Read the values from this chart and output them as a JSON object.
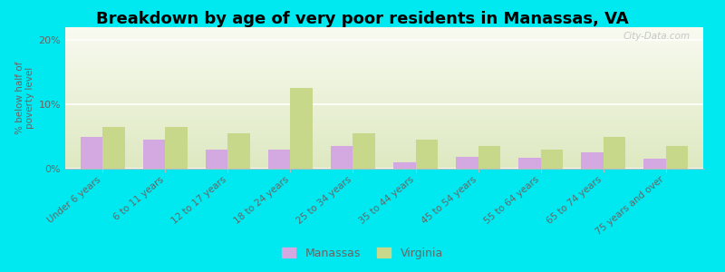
{
  "title": "Breakdown by age of very poor residents in Manassas, VA",
  "ylabel": "% below half of\npoverty level",
  "categories": [
    "Under 6 years",
    "6 to 11 years",
    "12 to 17 years",
    "18 to 24 years",
    "25 to 34 years",
    "35 to 44 years",
    "45 to 54 years",
    "55 to 64 years",
    "65 to 74 years",
    "75 years and over"
  ],
  "manassas_values": [
    5.0,
    4.5,
    3.0,
    3.0,
    3.5,
    1.0,
    1.8,
    1.7,
    2.5,
    1.5
  ],
  "virginia_values": [
    6.5,
    6.5,
    5.5,
    12.5,
    5.5,
    4.5,
    3.5,
    3.0,
    5.0,
    3.5
  ],
  "manassas_color": "#d4a8e0",
  "virginia_color": "#c8d88a",
  "ylim": [
    0,
    22
  ],
  "yticks": [
    0,
    10,
    20
  ],
  "ytick_labels": [
    "0%",
    "10%",
    "20%"
  ],
  "plot_bg_top": "#f8faf0",
  "plot_bg_bottom": "#dde8c0",
  "outer_bg": "#00e8f0",
  "bar_width": 0.35,
  "title_fontsize": 13,
  "legend_labels": [
    "Manassas",
    "Virginia"
  ],
  "watermark": "City-Data.com"
}
